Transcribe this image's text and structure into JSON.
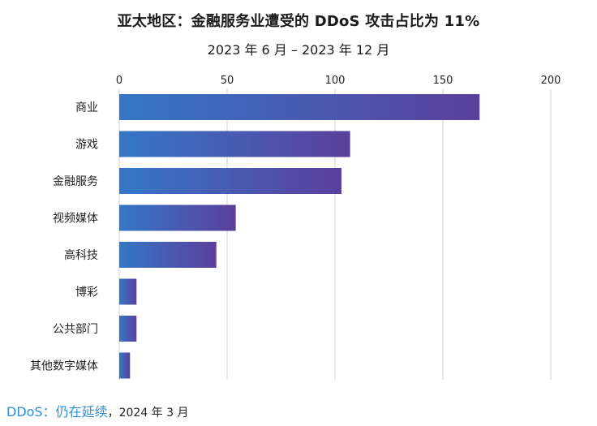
{
  "title": "亚太地区：金融服务业遭受的 DDoS 攻击占比为 11%",
  "subtitle": "2023 年 6 月 – 2023 年 12 月",
  "footer": {
    "brand": "DDoS：仍在延续",
    "date": "，2024 年 3 月"
  },
  "colors": {
    "bar_start": "#3477c6",
    "bar_end": "#5b3f9c",
    "grid": "#cfcfcf"
  },
  "chart_data": {
    "type": "bar",
    "orientation": "horizontal",
    "categories": [
      "商业",
      "游戏",
      "金融服务",
      "视频媒体",
      "高科技",
      "博彩",
      "公共部门",
      "其他数字媒体"
    ],
    "values": [
      167,
      107,
      103,
      54,
      45,
      8,
      8,
      5
    ],
    "xlim": [
      0,
      200
    ],
    "xticks": [
      0,
      50,
      100,
      150,
      200
    ],
    "axis_position": "top",
    "grid": true
  }
}
